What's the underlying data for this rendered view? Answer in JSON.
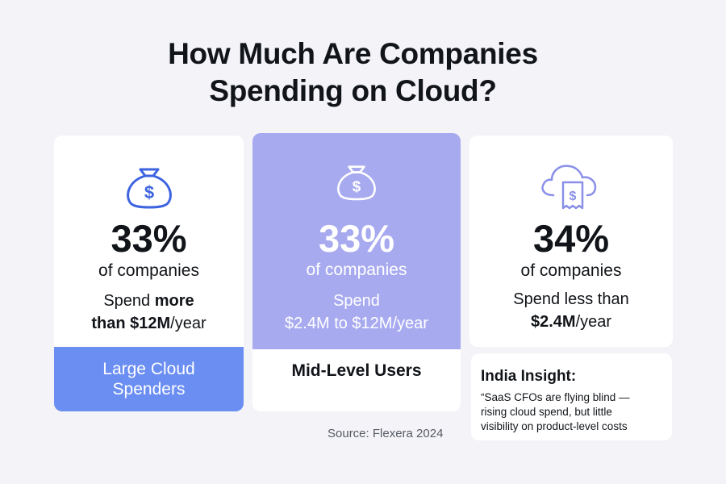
{
  "title_line1": "How Much Are Companies",
  "title_line2": "Spending on Cloud?",
  "cards": [
    {
      "icon": "money-bag-icon",
      "percent": "33%",
      "subtitle": "of companies",
      "desc_line1_pre": "Spend ",
      "desc_line1_bold": "more",
      "desc_line2_bold": "than $12M",
      "desc_line2_post": "/year",
      "label_line1": "Large Cloud",
      "label_line2": "Spenders",
      "label_color": "#6b8ef2"
    },
    {
      "icon": "money-bag-icon",
      "percent": "33%",
      "subtitle": "of companies",
      "desc_line1": "Spend",
      "desc_line2_bold": "$2.4M to $12M",
      "desc_line2_post": "/year",
      "label": "Mid-Level Users",
      "highlight_color": "#a8aaf0"
    },
    {
      "icon": "cloud-invoice-icon",
      "percent": "34%",
      "subtitle": "of companies",
      "desc_line1": "Spend less than",
      "desc_line2_bold": "$2.4M",
      "desc_line2_post": "/year"
    }
  ],
  "source": "Source: Flexera 2024",
  "insight": {
    "title": "India Insight:",
    "line1": "“SaaS CFOs are flying blind —",
    "line2": "rising cloud spend, but little",
    "line3": "visibility on product-level costs"
  },
  "colors": {
    "background": "#f4f4f8",
    "accent_blue": "#6b8ef2",
    "accent_lavender": "#a8aaf0",
    "text": "#111418"
  }
}
